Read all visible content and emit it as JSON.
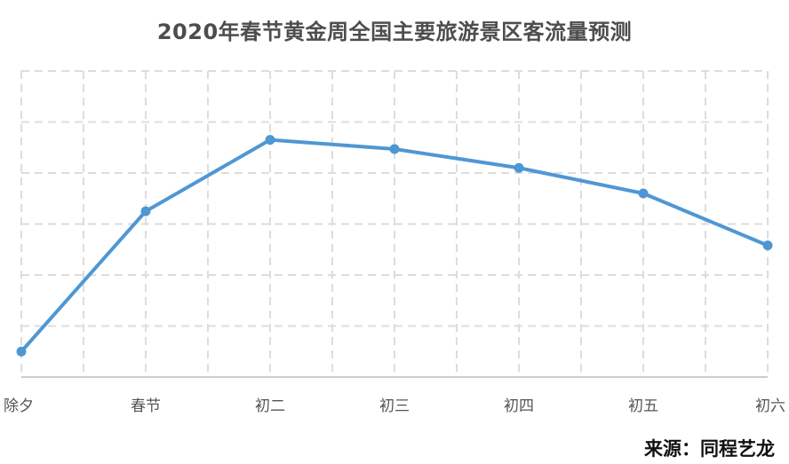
{
  "chart_title": "2020年春节黄金周全国主要旅游景区客流量预测",
  "source_note": "来源：同程艺龙",
  "colors": {
    "line": "#4f97d3",
    "grid": "#dddddd",
    "axis": "#cccccc",
    "title": "#4d4d4d"
  },
  "chart_data": {
    "type": "line",
    "title": "2020年春节黄金周全国主要旅游景区客流量预测",
    "xlabel": "",
    "ylabel": "",
    "categories": [
      "除夕",
      "春节",
      "初二",
      "初三",
      "初四",
      "初五",
      "初六"
    ],
    "series": [
      {
        "values": [
          0.5,
          3.25,
          4.65,
          4.47,
          4.1,
          3.6,
          2.58
        ]
      }
    ],
    "ylim": [
      0,
      6
    ],
    "y_tick_labels_shown": false,
    "grid": true,
    "grid_style": "dashed",
    "legend": "none"
  }
}
